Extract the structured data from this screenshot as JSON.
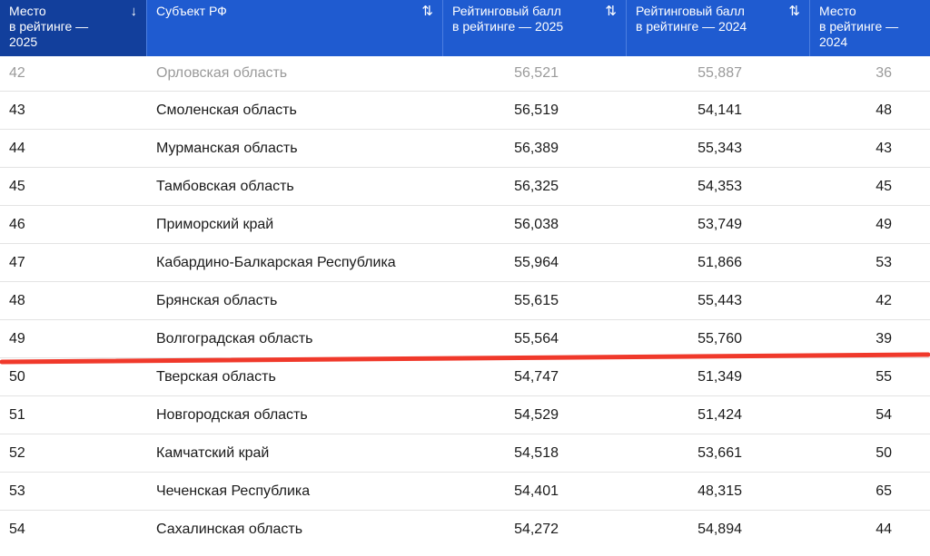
{
  "header": {
    "col_rank_2025": "Место\nв рейтинге —\n2025",
    "col_subject": "Субъект РФ",
    "col_score_2025": "Рейтинговый балл\nв рейтинге — 2025",
    "col_score_2024": "Рейтинговый балл\nв рейтинге — 2024",
    "col_rank_2024": "Место\nв рейтинге —\n2024",
    "sort_active_icon": "↓",
    "sort_icon": "⇅"
  },
  "rows": [
    {
      "rank_2025": "42",
      "subject": "Орловская область",
      "score_2025": "56,521",
      "score_2024": "55,887",
      "rank_2024": "36"
    },
    {
      "rank_2025": "43",
      "subject": "Смоленская область",
      "score_2025": "56,519",
      "score_2024": "54,141",
      "rank_2024": "48"
    },
    {
      "rank_2025": "44",
      "subject": "Мурманская область",
      "score_2025": "56,389",
      "score_2024": "55,343",
      "rank_2024": "43"
    },
    {
      "rank_2025": "45",
      "subject": "Тамбовская область",
      "score_2025": "56,325",
      "score_2024": "54,353",
      "rank_2024": "45"
    },
    {
      "rank_2025": "46",
      "subject": "Приморский край",
      "score_2025": "56,038",
      "score_2024": "53,749",
      "rank_2024": "49"
    },
    {
      "rank_2025": "47",
      "subject": "Кабардино-Балкарская Республика",
      "score_2025": "55,964",
      "score_2024": "51,866",
      "rank_2024": "53"
    },
    {
      "rank_2025": "48",
      "subject": "Брянская область",
      "score_2025": "55,615",
      "score_2024": "55,443",
      "rank_2024": "42"
    },
    {
      "rank_2025": "49",
      "subject": "Волгоградская область",
      "score_2025": "55,564",
      "score_2024": "55,760",
      "rank_2024": "39"
    },
    {
      "rank_2025": "50",
      "subject": "Тверская область",
      "score_2025": "54,747",
      "score_2024": "51,349",
      "rank_2024": "55"
    },
    {
      "rank_2025": "51",
      "subject": "Новгородская область",
      "score_2025": "54,529",
      "score_2024": "51,424",
      "rank_2024": "54"
    },
    {
      "rank_2025": "52",
      "subject": "Камчатский край",
      "score_2025": "54,518",
      "score_2024": "53,661",
      "rank_2024": "50"
    },
    {
      "rank_2025": "53",
      "subject": "Чеченская Республика",
      "score_2025": "54,401",
      "score_2024": "48,315",
      "rank_2024": "65"
    },
    {
      "rank_2025": "54",
      "subject": "Сахалинская область",
      "score_2025": "54,272",
      "score_2024": "54,894",
      "rank_2024": "44"
    }
  ],
  "colors": {
    "header_bg": "#1f5bd0",
    "active_header_bg": "#123f9c",
    "annotation": "#f0392b"
  }
}
